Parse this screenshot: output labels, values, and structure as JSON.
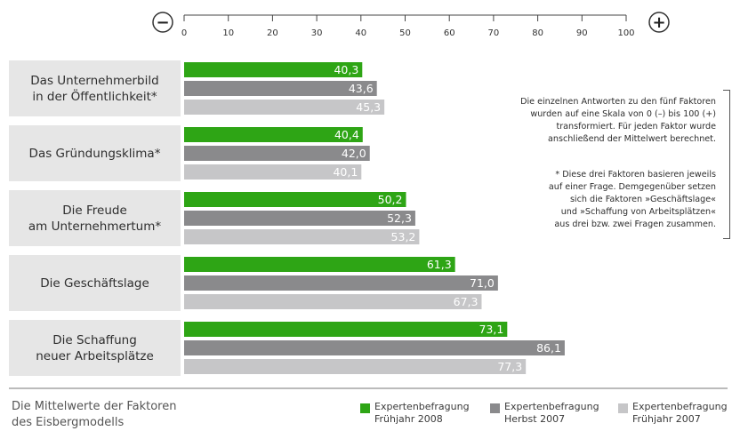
{
  "chart_data": {
    "type": "bar",
    "orientation": "horizontal",
    "xlim": [
      0,
      100
    ],
    "ticks": [
      0,
      10,
      20,
      30,
      40,
      50,
      60,
      70,
      80,
      90,
      100
    ],
    "tick_labels": [
      "0",
      "10",
      "20",
      "30",
      "40",
      "50",
      "60",
      "70",
      "80",
      "90",
      "100"
    ],
    "scale_min_symbol": "−",
    "scale_max_symbol": "+",
    "categories": [
      "Das Unternehmerbild\nin der Öffentlichkeit*",
      "Das Gründungsklima*",
      "Die Freude\nam Unternehmertum*",
      "Die Geschäftslage",
      "Die Schaffung\nneuer Arbeitsplätze"
    ],
    "series": [
      {
        "name": "Expertenbefragung\nFrühjahr 2008",
        "color": "#2ea515",
        "values": [
          40.3,
          40.4,
          50.2,
          61.3,
          73.1
        ],
        "labels": [
          "40,3",
          "40,4",
          "50,2",
          "61,3",
          "73,1"
        ]
      },
      {
        "name": "Expertenbefragung\nHerbst 2007",
        "color": "#8a8a8c",
        "values": [
          43.6,
          42.0,
          52.3,
          71.0,
          86.1
        ],
        "labels": [
          "43,6",
          "42,0",
          "52,3",
          "71,0",
          "86,1"
        ]
      },
      {
        "name": "Expertenbefragung\nFrühjahr 2007",
        "color": "#c6c6c8",
        "values": [
          45.3,
          40.1,
          53.2,
          67.3,
          77.3
        ],
        "labels": [
          "45,3",
          "40,1",
          "53,2",
          "67,3",
          "77,3"
        ]
      }
    ],
    "legend_position": "bottom-right",
    "grid": false
  },
  "note": {
    "paragraph1": "Die einzelnen Antworten zu den fünf Faktoren\nwurden auf eine Skala von 0 (–) bis 100 (+)\ntransformiert. Für jeden Faktor wurde\nanschließend der Mittelwert berechnet.",
    "paragraph2": "* Diese drei Faktoren basieren jeweils\nauf einer Frage. Demgegenüber setzen\nsich die Faktoren »Geschäftslage«\nund »Schaffung von Arbeitsplätzen«\naus drei bzw. zwei Fragen zusammen."
  },
  "caption": "Die Mittelwerte der Faktoren\ndes Eisbergmodells"
}
